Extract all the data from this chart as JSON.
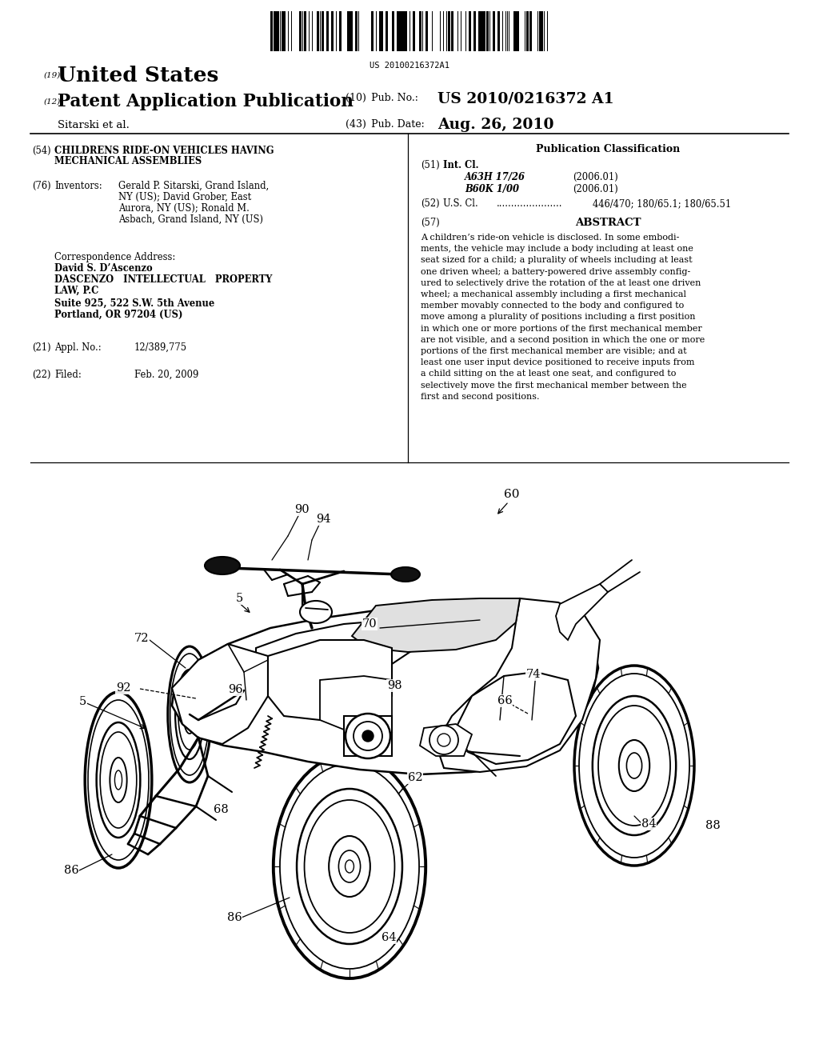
{
  "background_color": "#ffffff",
  "barcode_text": "US 20100216372A1",
  "header": {
    "country_num": "(19)",
    "country": "United States",
    "app_type_num": "(12)",
    "app_type": "Patent Application Publication",
    "pub_num_label": "(10) Pub. No.:",
    "pub_num": "US 2010/0216372 A1",
    "inventors_label": "Sitarski et al.",
    "pub_date_num": "(43) Pub. Date:",
    "pub_date": "Aug. 26, 2010"
  },
  "left_col": {
    "title_num": "(54)",
    "title_line1": "CHILDRENS RIDE-ON VEHICLES HAVING",
    "title_line2": "MECHANICAL ASSEMBLIES",
    "inv_num": "(76)",
    "inv_label": "Inventors:",
    "inv_lines": [
      "Gerald P. Sitarski, Grand Island,",
      "NY (US); David Grober, East",
      "Aurora, NY (US); Ronald M.",
      "Asbach, Grand Island, NY (US)"
    ],
    "corr_header": "Correspondence Address:",
    "corr_name": "David S. D’Ascenzo",
    "corr_firm1": "DASCENZO   INTELLECTUAL   PROPERTY",
    "corr_firm2": "LAW, P.C",
    "corr_addr1": "Suite 925, 522 S.W. 5th Avenue",
    "corr_addr2": "Portland, OR 97204 (US)",
    "appl_num": "(21)",
    "appl_label": "Appl. No.:",
    "appl_val": "12/389,775",
    "filed_num": "(22)",
    "filed_label": "Filed:",
    "filed_val": "Feb. 20, 2009"
  },
  "right_col": {
    "pub_class": "Publication Classification",
    "int_cl_num": "(51)",
    "int_cl_label": "Int. Cl.",
    "int_entries": [
      {
        "code": "A63H 17/26",
        "year": "(2006.01)"
      },
      {
        "code": "B60K 1/00",
        "year": "(2006.01)"
      }
    ],
    "us_num": "(52)",
    "us_label": "U.S. Cl.",
    "us_dots": "......................",
    "us_val": "446/470; 180/65.1; 180/65.51",
    "abs_num": "(57)",
    "abs_title": "ABSTRACT",
    "abs_lines": [
      "A children’s ride-on vehicle is disclosed. In some embodi-",
      "ments, the vehicle may include a body including at least one",
      "seat sized for a child; a plurality of wheels including at least",
      "one driven wheel; a battery-powered drive assembly config-",
      "ured to selectively drive the rotation of the at least one driven",
      "wheel; a mechanical assembly including a first mechanical",
      "member movably connected to the body and configured to",
      "move among a plurality of positions including a first position",
      "in which one or more portions of the first mechanical member",
      "are not visible, and a second position in which the one or more",
      "portions of the first mechanical member are visible; and at",
      "least one user input device positioned to receive inputs from",
      "a child sitting on the at least one seat, and configured to",
      "selectively move the first mechanical member between the",
      "first and second positions."
    ]
  }
}
